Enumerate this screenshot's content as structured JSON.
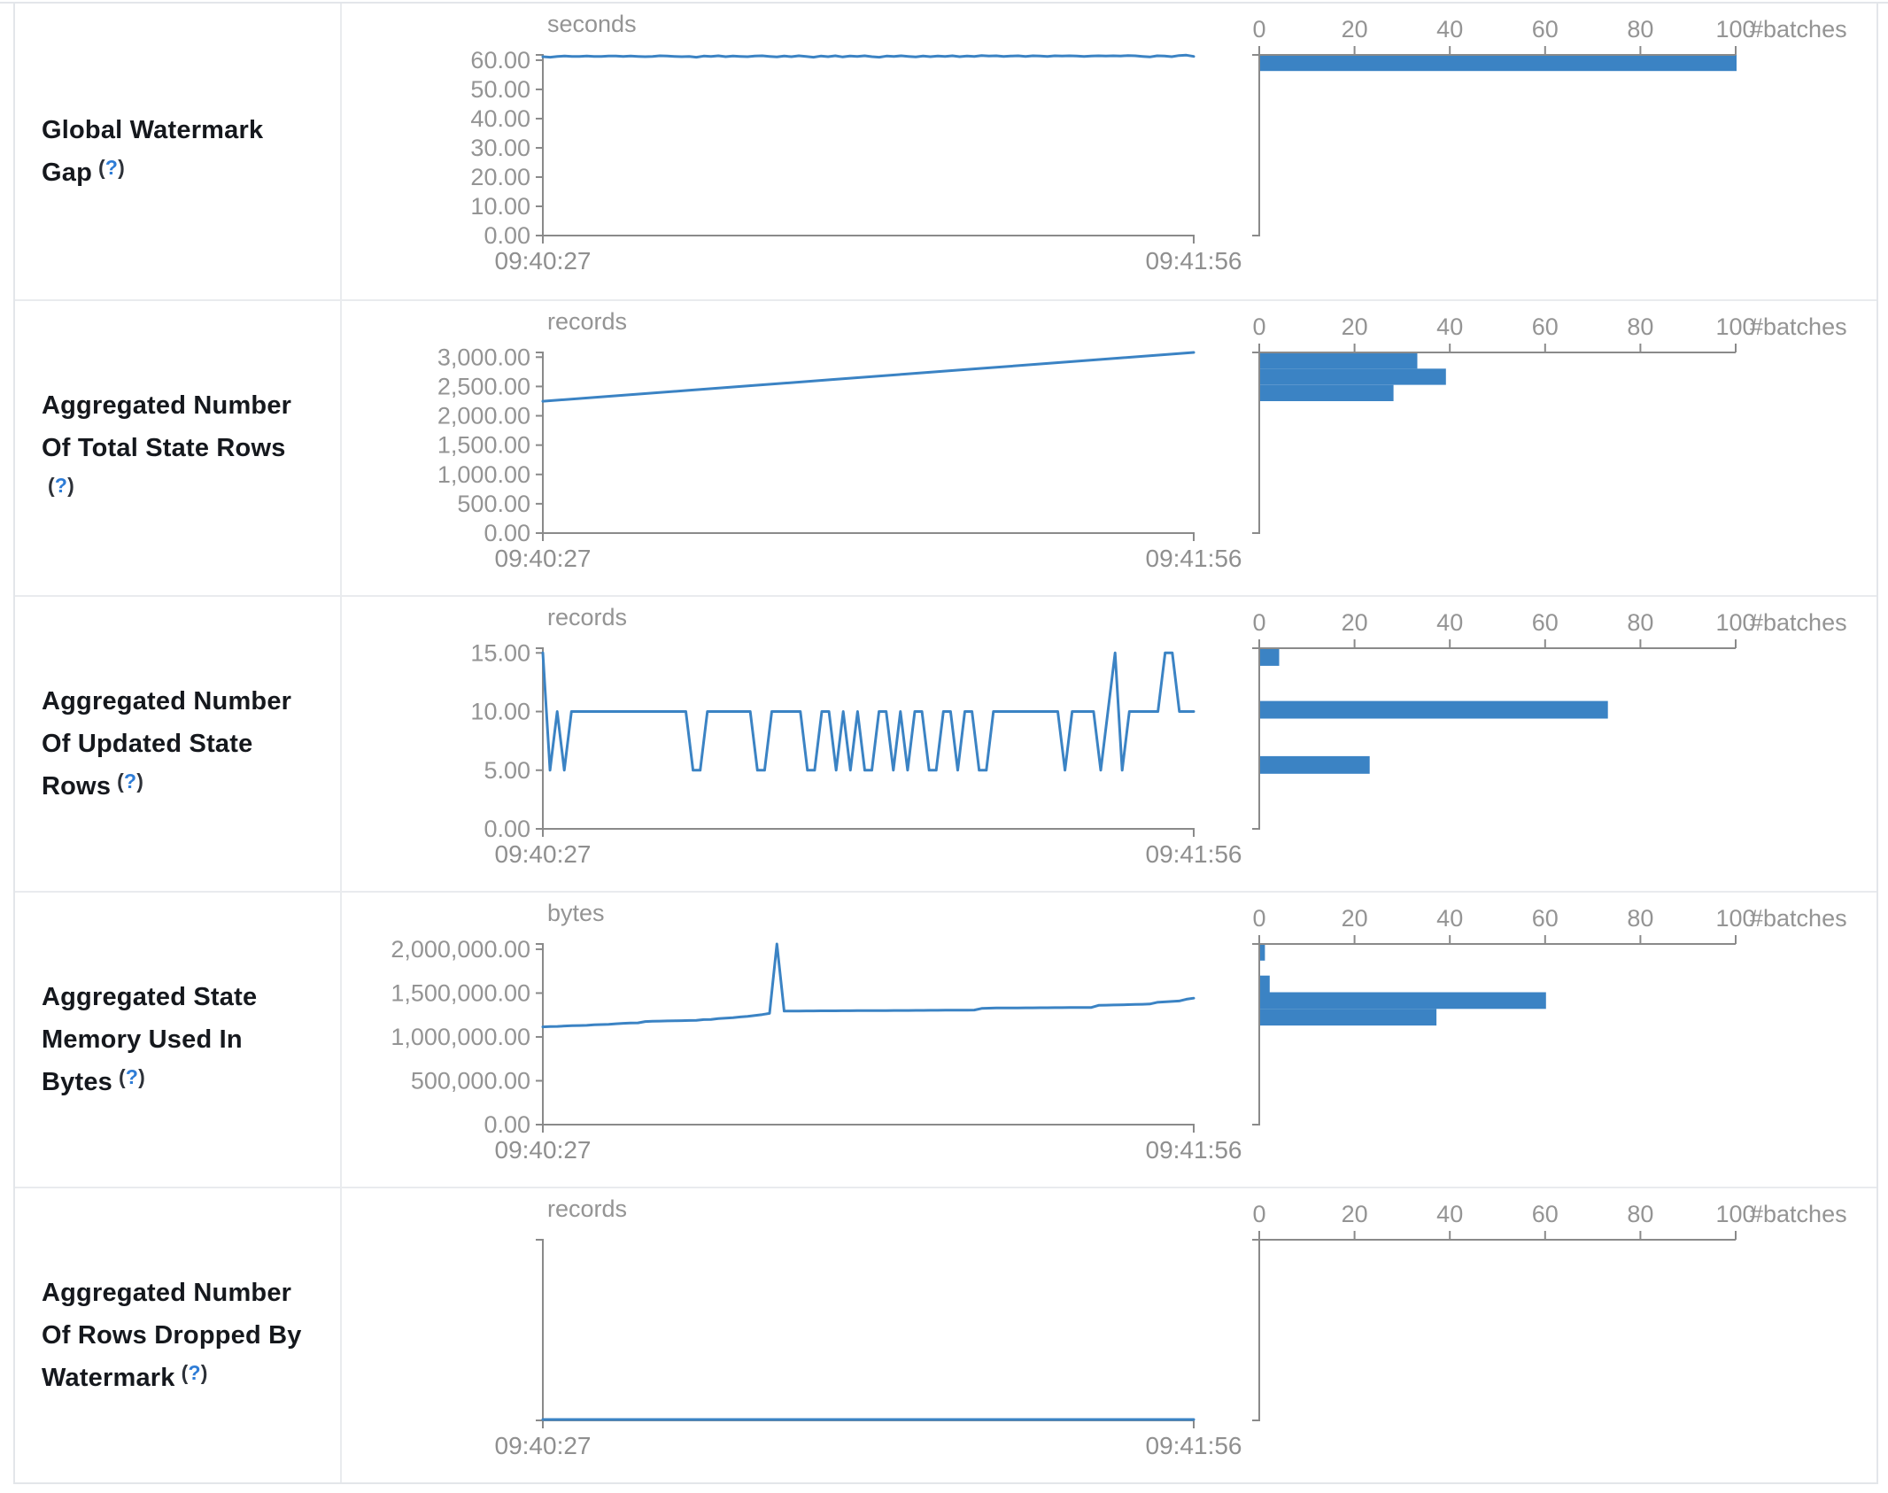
{
  "colors": {
    "accent": "#3b83c4",
    "axis": "#8a8a8a",
    "tick_text": "#949494",
    "border": "#e9ebee"
  },
  "table": {
    "rows": [
      {
        "label": "Global Watermark Gap",
        "help_label": "(?)",
        "timeline": {
          "unit": "seconds",
          "x_start_label": "09:40:27",
          "x_end_label": "09:41:56",
          "y_max": 61.8,
          "y_ticks": [
            {
              "v": 0,
              "label": "0.00"
            },
            {
              "v": 10,
              "label": "10.00"
            },
            {
              "v": 20,
              "label": "20.00"
            },
            {
              "v": 30,
              "label": "30.00"
            },
            {
              "v": 40,
              "label": "40.00"
            },
            {
              "v": 50,
              "label": "50.00"
            },
            {
              "v": 60,
              "label": "60.00"
            }
          ],
          "values": [
            61.2,
            61.0,
            61.3,
            61.4,
            61.3,
            61.3,
            61.4,
            61.3,
            61.3,
            61.4,
            61.4,
            61.3,
            61.4,
            61.3,
            61.2,
            61.3,
            61.5,
            61.4,
            61.3,
            61.2,
            61.3,
            61.0,
            61.4,
            61.3,
            61.5,
            61.2,
            61.4,
            61.3,
            61.2,
            61.4,
            61.5,
            61.3,
            61.1,
            61.4,
            61.2,
            61.5,
            61.3,
            61.0,
            61.4,
            61.2,
            61.5,
            61.1,
            61.4,
            61.3,
            61.5,
            61.2,
            61.0,
            61.4,
            61.3,
            61.5,
            61.3,
            61.1,
            61.4,
            61.2,
            61.4,
            61.3,
            61.5,
            61.2,
            61.4,
            61.3,
            61.6,
            61.4,
            61.5,
            61.3,
            61.4,
            61.5,
            61.3,
            61.5,
            61.4,
            61.3,
            61.5,
            61.4,
            61.5,
            61.4,
            61.3,
            61.4,
            61.5,
            61.4,
            61.5,
            61.4,
            61.6,
            61.5,
            61.3,
            61.1,
            61.5,
            61.4,
            61.2,
            61.6,
            61.7,
            61.3
          ]
        },
        "histogram": {
          "unit_label": "#batches",
          "x_max": 100,
          "x_ticks": [
            {
              "v": 0,
              "label": "0"
            },
            {
              "v": 20,
              "label": "20"
            },
            {
              "v": 40,
              "label": "40"
            },
            {
              "v": 60,
              "label": "60"
            },
            {
              "v": 80,
              "label": "80"
            },
            {
              "v": 100,
              "label": "100"
            }
          ],
          "bins": [
            {
              "lo": 56.3,
              "hi": 61.8,
              "count": 100
            }
          ]
        }
      },
      {
        "label": "Aggregated Number Of Total State Rows",
        "help_label": "(?)",
        "timeline": {
          "unit": "records",
          "x_start_label": "09:40:27",
          "x_end_label": "09:41:56",
          "y_max": 3080,
          "y_ticks": [
            {
              "v": 0,
              "label": "0.00"
            },
            {
              "v": 500,
              "label": "500.00"
            },
            {
              "v": 1000,
              "label": "1,000.00"
            },
            {
              "v": 1500,
              "label": "1,500.00"
            },
            {
              "v": 2000,
              "label": "2,000.00"
            },
            {
              "v": 2500,
              "label": "2,500.00"
            },
            {
              "v": 3000,
              "label": "3,000.00"
            }
          ],
          "values": [
            2248,
            2340,
            2432,
            2525,
            2618,
            2710,
            2802,
            2895,
            2988,
            3080
          ]
        },
        "histogram": {
          "unit_label": "#batches",
          "x_max": 100,
          "x_ticks": [
            {
              "v": 0,
              "label": "0"
            },
            {
              "v": 20,
              "label": "20"
            },
            {
              "v": 40,
              "label": "40"
            },
            {
              "v": 60,
              "label": "60"
            },
            {
              "v": 80,
              "label": "80"
            },
            {
              "v": 100,
              "label": "100"
            }
          ],
          "bins": [
            {
              "lo": 2803,
              "hi": 3080,
              "count": 33
            },
            {
              "lo": 2526,
              "hi": 2803,
              "count": 39
            },
            {
              "lo": 2249,
              "hi": 2526,
              "count": 28
            }
          ]
        }
      },
      {
        "label": "Aggregated Number Of Updated State Rows",
        "help_label": "(?)",
        "timeline": {
          "unit": "records",
          "x_start_label": "09:40:27",
          "x_end_label": "09:41:56",
          "y_max": 15.4,
          "y_ticks": [
            {
              "v": 0,
              "label": "0.00"
            },
            {
              "v": 5,
              "label": "5.00"
            },
            {
              "v": 10,
              "label": "10.00"
            },
            {
              "v": 15,
              "label": "15.00"
            }
          ],
          "values": [
            15,
            5,
            10,
            5,
            10,
            10,
            10,
            10,
            10,
            10,
            10,
            10,
            10,
            10,
            10,
            10,
            10,
            10,
            10,
            10,
            10,
            5,
            5,
            10,
            10,
            10,
            10,
            10,
            10,
            10,
            5,
            5,
            10,
            10,
            10,
            10,
            10,
            5,
            5,
            10,
            10,
            5,
            10,
            5,
            10,
            5,
            5,
            10,
            10,
            5,
            10,
            5,
            10,
            10,
            5,
            5,
            10,
            10,
            5,
            10,
            10,
            5,
            5,
            10,
            10,
            10,
            10,
            10,
            10,
            10,
            10,
            10,
            10,
            5,
            10,
            10,
            10,
            10,
            5,
            10,
            15,
            5,
            10,
            10,
            10,
            10,
            10,
            15,
            15,
            10,
            10,
            10
          ]
        },
        "histogram": {
          "unit_label": "#batches",
          "x_max": 100,
          "x_ticks": [
            {
              "v": 0,
              "label": "0"
            },
            {
              "v": 20,
              "label": "20"
            },
            {
              "v": 40,
              "label": "40"
            },
            {
              "v": 60,
              "label": "60"
            },
            {
              "v": 80,
              "label": "80"
            },
            {
              "v": 100,
              "label": "100"
            }
          ],
          "bins": [
            {
              "lo": 13.9,
              "hi": 15.4,
              "count": 4
            },
            {
              "lo": 9.4,
              "hi": 10.9,
              "count": 73
            },
            {
              "lo": 4.7,
              "hi": 6.2,
              "count": 23
            }
          ]
        }
      },
      {
        "label": "Aggregated State Memory Used In Bytes",
        "help_label": "(?)",
        "timeline": {
          "unit": "bytes",
          "x_start_label": "09:40:27",
          "x_end_label": "09:41:56",
          "y_max": 2060000,
          "y_ticks": [
            {
              "v": 0,
              "label": "0.00"
            },
            {
              "v": 500000,
              "label": "500,000.00"
            },
            {
              "v": 1000000,
              "label": "1,000,000.00"
            },
            {
              "v": 1500000,
              "label": "1,500,000.00"
            },
            {
              "v": 2000000,
              "label": "2,000,000.00"
            }
          ],
          "values": [
            1115000,
            1118000,
            1120000,
            1125000,
            1128000,
            1130000,
            1132000,
            1138000,
            1141000,
            1144000,
            1150000,
            1155000,
            1158000,
            1160000,
            1175000,
            1178000,
            1180000,
            1182000,
            1184000,
            1186000,
            1188000,
            1190000,
            1198000,
            1200000,
            1210000,
            1215000,
            1220000,
            1228000,
            1235000,
            1245000,
            1255000,
            1268000,
            2060000,
            1295000,
            1296000,
            1296000,
            1297000,
            1297000,
            1298000,
            1298000,
            1298000,
            1299000,
            1299000,
            1300000,
            1300000,
            1300000,
            1301000,
            1301000,
            1302000,
            1302000,
            1302000,
            1303000,
            1303000,
            1304000,
            1304000,
            1305000,
            1305000,
            1306000,
            1306000,
            1307000,
            1325000,
            1328000,
            1330000,
            1330000,
            1331000,
            1331000,
            1332000,
            1332000,
            1333000,
            1333000,
            1334000,
            1334000,
            1335000,
            1335000,
            1336000,
            1336000,
            1360000,
            1362000,
            1364000,
            1366000,
            1368000,
            1370000,
            1372000,
            1375000,
            1395000,
            1400000,
            1405000,
            1410000,
            1430000,
            1442000
          ]
        },
        "histogram": {
          "unit_label": "#batches",
          "x_max": 100,
          "x_ticks": [
            {
              "v": 0,
              "label": "0"
            },
            {
              "v": 20,
              "label": "20"
            },
            {
              "v": 40,
              "label": "40"
            },
            {
              "v": 60,
              "label": "60"
            },
            {
              "v": 80,
              "label": "80"
            },
            {
              "v": 100,
              "label": "100"
            }
          ],
          "bins": [
            {
              "lo": 1870000,
              "hi": 2060000,
              "count": 1
            },
            {
              "lo": 1510000,
              "hi": 1700000,
              "count": 2
            },
            {
              "lo": 1320000,
              "hi": 1510000,
              "count": 60
            },
            {
              "lo": 1130000,
              "hi": 1320000,
              "count": 37
            }
          ]
        }
      },
      {
        "label": "Aggregated Number Of Rows Dropped By Watermark",
        "help_label": "(?)",
        "timeline": {
          "unit": "records",
          "x_start_label": "09:40:27",
          "x_end_label": "09:41:56",
          "y_max": 1,
          "y_ticks": [],
          "values": [
            0,
            0,
            0,
            0,
            0,
            0,
            0,
            0,
            0,
            0,
            0,
            0,
            0,
            0,
            0,
            0,
            0,
            0,
            0,
            0
          ]
        },
        "histogram": {
          "unit_label": "#batches",
          "x_max": 100,
          "x_ticks": [
            {
              "v": 0,
              "label": "0"
            },
            {
              "v": 20,
              "label": "20"
            },
            {
              "v": 40,
              "label": "40"
            },
            {
              "v": 60,
              "label": "60"
            },
            {
              "v": 80,
              "label": "80"
            },
            {
              "v": 100,
              "label": "100"
            }
          ],
          "bins": []
        }
      }
    ]
  }
}
